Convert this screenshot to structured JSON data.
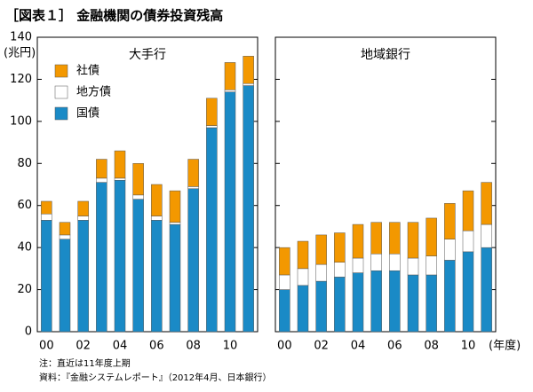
{
  "title": "［図表１］ 金融機関の債券投資残高",
  "notes": [
    "注：直近は11年度上期",
    "資料：『金融システムレポート』（2012年4月、日本銀行）"
  ],
  "chart_data": [
    {
      "type": "bar",
      "stacked": true,
      "panel_title": "大手行",
      "ylabel": "(兆円)",
      "categories": [
        "00",
        null,
        "02",
        null,
        "04",
        null,
        "06",
        null,
        "08",
        null,
        "10",
        null
      ],
      "ylim": [
        0,
        140
      ],
      "yticks": [
        0,
        20,
        40,
        60,
        80,
        100,
        120,
        140
      ],
      "legend": "upper left",
      "series": [
        {
          "name": "国債",
          "color": "#1a8ac6",
          "values": [
            53,
            44,
            53,
            71,
            72,
            63,
            53,
            51,
            68,
            97,
            114,
            117
          ]
        },
        {
          "name": "地方債",
          "color": "#ffffff",
          "values": [
            3,
            2,
            2,
            2,
            1,
            2,
            2,
            1,
            1,
            1,
            1,
            1
          ]
        },
        {
          "name": "社債",
          "color": "#f39800",
          "values": [
            6,
            6,
            7,
            9,
            13,
            15,
            15,
            15,
            13,
            13,
            13,
            13
          ]
        }
      ]
    },
    {
      "type": "bar",
      "stacked": true,
      "panel_title": "地域銀行",
      "xlabel": "(年度)",
      "categories": [
        "00",
        null,
        "02",
        null,
        "04",
        null,
        "06",
        null,
        "08",
        null,
        "10",
        null
      ],
      "ylim": [
        0,
        140
      ],
      "yticks": [
        0,
        20,
        40,
        60,
        80,
        100,
        120,
        140
      ],
      "series": [
        {
          "color": "#1a8ac6",
          "values": [
            20,
            22,
            24,
            26,
            28,
            29,
            29,
            27,
            27,
            34,
            38,
            40
          ]
        },
        {
          "color": "#ffffff",
          "values": [
            7,
            8,
            8,
            7,
            7,
            8,
            8,
            8,
            9,
            10,
            10,
            11
          ]
        },
        {
          "color": "#f39800",
          "values": [
            13,
            13,
            14,
            14,
            16,
            15,
            15,
            17,
            18,
            17,
            19,
            20
          ]
        }
      ]
    }
  ]
}
